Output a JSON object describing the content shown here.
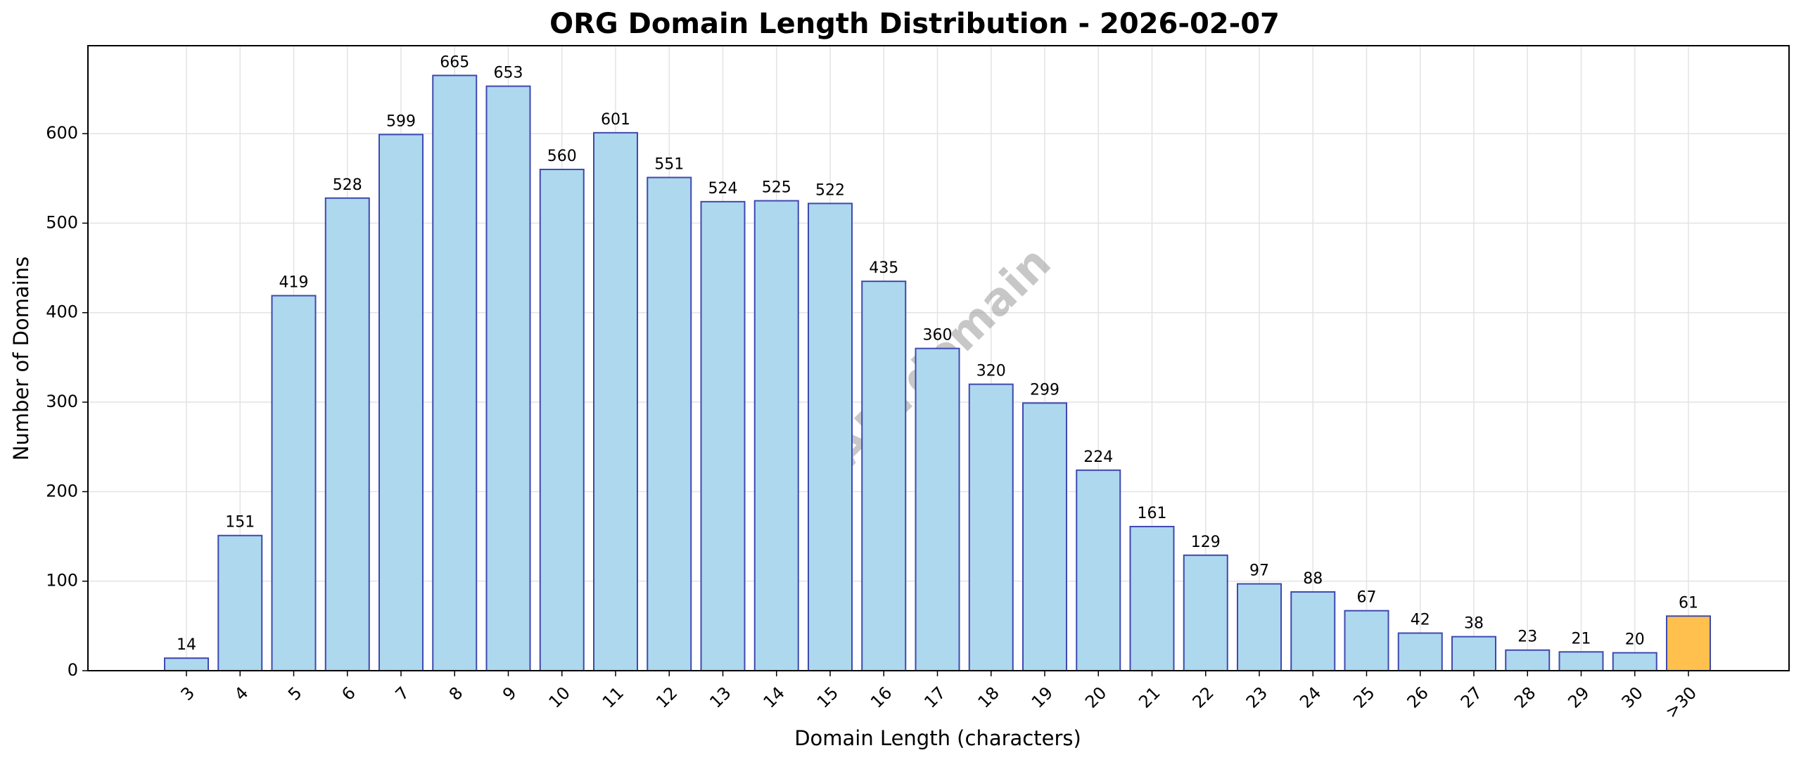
{
  "chart_data": {
    "type": "bar",
    "title": "ORG Domain Length Distribution - 2026-02-07",
    "xlabel": "Domain Length (characters)",
    "ylabel": "Number of Domains",
    "watermark": "ABTdomain",
    "categories": [
      "3",
      "4",
      "5",
      "6",
      "7",
      "8",
      "9",
      "10",
      "11",
      "12",
      "13",
      "14",
      "15",
      "16",
      "17",
      "18",
      "19",
      "20",
      "21",
      "22",
      "23",
      "24",
      "25",
      "26",
      "27",
      "28",
      "29",
      "30",
      ">30"
    ],
    "values": [
      14,
      151,
      419,
      528,
      599,
      665,
      653,
      560,
      601,
      551,
      524,
      525,
      522,
      435,
      360,
      320,
      299,
      224,
      161,
      129,
      97,
      88,
      67,
      42,
      38,
      23,
      21,
      20,
      61
    ],
    "colors": [
      "#add8ee",
      "#add8ee",
      "#add8ee",
      "#add8ee",
      "#add8ee",
      "#add8ee",
      "#add8ee",
      "#add8ee",
      "#add8ee",
      "#add8ee",
      "#add8ee",
      "#add8ee",
      "#add8ee",
      "#add8ee",
      "#add8ee",
      "#add8ee",
      "#add8ee",
      "#add8ee",
      "#add8ee",
      "#add8ee",
      "#add8ee",
      "#add8ee",
      "#add8ee",
      "#add8ee",
      "#add8ee",
      "#add8ee",
      "#add8ee",
      "#add8ee",
      "#ffc04d"
    ],
    "edgecolor": "#3f48b0",
    "ylim": [
      0,
      698.25
    ],
    "yticks": [
      0,
      100,
      200,
      300,
      400,
      500,
      600
    ],
    "grid": true
  }
}
